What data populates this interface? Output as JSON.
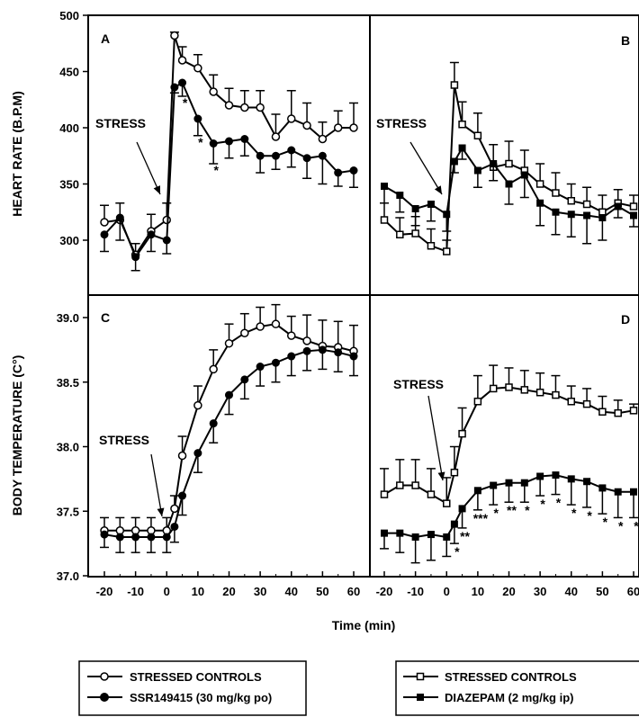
{
  "figure": {
    "x_axis_label": "Time (min)",
    "x_ticks": [
      -20,
      -10,
      0,
      10,
      20,
      30,
      40,
      50,
      60
    ],
    "stress_label": "STRESS"
  },
  "legends": [
    {
      "id": "left",
      "entries": [
        {
          "label": "STRESSED CONTROLS",
          "marker": "open-circle"
        },
        {
          "label": "SSR149415 (30 mg/kg po)",
          "marker": "filled-circle"
        }
      ]
    },
    {
      "id": "right",
      "entries": [
        {
          "label": "STRESSED CONTROLS",
          "marker": "open-square"
        },
        {
          "label": "DIAZEPAM (2 mg/kg ip)",
          "marker": "filled-square"
        }
      ]
    }
  ],
  "chart_data": [
    {
      "panel": "A",
      "type": "line",
      "ylabel": "HEART RATE (B.P.M)",
      "xlabel": "Time (min)",
      "ylim": [
        300,
        500
      ],
      "yticks": [
        300,
        350,
        400,
        450,
        500
      ],
      "xlim": [
        -25,
        62
      ],
      "x": [
        -20,
        -15,
        -10,
        -5,
        0,
        2.5,
        5,
        10,
        15,
        20,
        25,
        30,
        35,
        40,
        45,
        50,
        55,
        60
      ],
      "annotations": [
        {
          "text": "STRESS",
          "at_x": 0
        }
      ],
      "significance": [
        {
          "x": 5,
          "text": "*"
        },
        {
          "x": 10,
          "text": "*"
        },
        {
          "x": 15,
          "text": "*"
        }
      ],
      "series": [
        {
          "name": "STRESSED CONTROLS",
          "marker": "open-circle",
          "values": [
            316,
            318,
            287,
            308,
            318,
            482,
            460,
            453,
            432,
            420,
            418,
            418,
            392,
            408,
            402,
            390,
            400,
            400
          ],
          "errors": [
            15,
            15,
            10,
            15,
            15,
            3,
            12,
            12,
            15,
            15,
            15,
            15,
            20,
            25,
            20,
            15,
            15,
            22
          ]
        },
        {
          "name": "SSR149415 (30 mg/kg po)",
          "marker": "filled-circle",
          "values": [
            305,
            320,
            285,
            305,
            300,
            436,
            440,
            408,
            386,
            388,
            390,
            375,
            375,
            380,
            373,
            375,
            360,
            362
          ],
          "errors": [
            15,
            20,
            12,
            15,
            12,
            5,
            12,
            15,
            18,
            15,
            15,
            15,
            12,
            15,
            18,
            25,
            12,
            15
          ]
        }
      ]
    },
    {
      "panel": "B",
      "type": "line",
      "ylim": [
        300,
        500
      ],
      "xlim": [
        -25,
        62
      ],
      "x": [
        -20,
        -15,
        -10,
        -5,
        0,
        2.5,
        5,
        10,
        15,
        20,
        25,
        30,
        35,
        40,
        45,
        50,
        55,
        60
      ],
      "annotations": [
        {
          "text": "STRESS",
          "at_x": 0
        }
      ],
      "series": [
        {
          "name": "STRESSED CONTROLS",
          "marker": "open-square",
          "values": [
            318,
            305,
            306,
            295,
            290,
            438,
            403,
            393,
            365,
            368,
            362,
            350,
            342,
            335,
            332,
            325,
            333,
            330
          ],
          "errors": [
            15,
            15,
            15,
            15,
            10,
            20,
            20,
            20,
            20,
            20,
            18,
            18,
            18,
            15,
            15,
            15,
            12,
            10
          ]
        },
        {
          "name": "DIAZEPAM (2 mg/kg ip)",
          "marker": "filled-square",
          "values": [
            348,
            340,
            328,
            332,
            323,
            370,
            382,
            362,
            368,
            350,
            358,
            333,
            325,
            323,
            322,
            320,
            330,
            322
          ],
          "errors": [
            15,
            15,
            15,
            15,
            15,
            10,
            10,
            15,
            15,
            18,
            20,
            20,
            20,
            20,
            25,
            20,
            10,
            10
          ]
        }
      ]
    },
    {
      "panel": "C",
      "type": "line",
      "ylabel": "BODY TEMPERATURE (C°)",
      "xlabel": "Time (min)",
      "ylim": [
        37.0,
        39.25
      ],
      "yticks": [
        37.0,
        37.5,
        38.0,
        38.5,
        39.0
      ],
      "xlim": [
        -25,
        62
      ],
      "x": [
        -20,
        -15,
        -10,
        -5,
        0,
        2.5,
        5,
        10,
        15,
        20,
        25,
        30,
        35,
        40,
        45,
        50,
        55,
        60
      ],
      "annotations": [
        {
          "text": "STRESS",
          "at_x": 0
        }
      ],
      "series": [
        {
          "name": "STRESSED CONTROLS",
          "marker": "open-circle",
          "values": [
            37.35,
            37.35,
            37.35,
            37.35,
            37.35,
            37.52,
            37.93,
            38.32,
            38.6,
            38.8,
            38.88,
            38.93,
            38.95,
            38.86,
            38.82,
            38.78,
            38.77,
            38.74
          ],
          "errors": [
            0.1,
            0.1,
            0.1,
            0.1,
            0.1,
            0.1,
            0.15,
            0.15,
            0.15,
            0.15,
            0.15,
            0.15,
            0.15,
            0.15,
            0.2,
            0.2,
            0.2,
            0.2
          ]
        },
        {
          "name": "SSR149415 (30 mg/kg po)",
          "marker": "filled-circle",
          "values": [
            37.32,
            37.3,
            37.3,
            37.3,
            37.3,
            37.38,
            37.62,
            37.95,
            38.18,
            38.4,
            38.52,
            38.62,
            38.65,
            38.7,
            38.74,
            38.75,
            38.73,
            38.7
          ],
          "errors": [
            0.1,
            0.12,
            0.12,
            0.12,
            0.12,
            0.12,
            0.15,
            0.15,
            0.15,
            0.15,
            0.15,
            0.15,
            0.15,
            0.15,
            0.15,
            0.15,
            0.15,
            0.15
          ]
        }
      ]
    },
    {
      "panel": "D",
      "type": "line",
      "ylim": [
        37.0,
        39.25
      ],
      "xlim": [
        -25,
        62
      ],
      "x": [
        -20,
        -15,
        -10,
        -5,
        0,
        2.5,
        5,
        10,
        15,
        20,
        25,
        30,
        35,
        40,
        45,
        50,
        55,
        60
      ],
      "annotations": [
        {
          "text": "STRESS",
          "at_x": 0
        }
      ],
      "significance": [
        {
          "x": 2.5,
          "text": "*"
        },
        {
          "x": 5,
          "text": "**"
        },
        {
          "x": 10,
          "text": "***"
        },
        {
          "x": 15,
          "text": "*"
        },
        {
          "x": 20,
          "text": "**"
        },
        {
          "x": 25,
          "text": "*"
        },
        {
          "x": 30,
          "text": "*"
        },
        {
          "x": 35,
          "text": "*"
        },
        {
          "x": 40,
          "text": "*"
        },
        {
          "x": 45,
          "text": "*"
        },
        {
          "x": 50,
          "text": "*"
        },
        {
          "x": 55,
          "text": "*"
        },
        {
          "x": 60,
          "text": "*"
        }
      ],
      "series": [
        {
          "name": "STRESSED CONTROLS",
          "marker": "open-square",
          "values": [
            37.63,
            37.7,
            37.7,
            37.63,
            37.56,
            37.8,
            38.1,
            38.35,
            38.45,
            38.46,
            38.44,
            38.42,
            38.4,
            38.35,
            38.33,
            38.27,
            38.26,
            38.28
          ],
          "errors": [
            0.2,
            0.2,
            0.2,
            0.2,
            0.2,
            0.2,
            0.2,
            0.2,
            0.18,
            0.15,
            0.15,
            0.15,
            0.15,
            0.12,
            0.12,
            0.12,
            0.1,
            0.05
          ]
        },
        {
          "name": "DIAZEPAM (2 mg/kg ip)",
          "marker": "filled-square",
          "values": [
            37.33,
            37.33,
            37.3,
            37.32,
            37.3,
            37.4,
            37.52,
            37.66,
            37.7,
            37.72,
            37.72,
            37.77,
            37.78,
            37.75,
            37.73,
            37.68,
            37.65,
            37.65
          ],
          "errors": [
            0.12,
            0.15,
            0.2,
            0.2,
            0.15,
            0.15,
            0.15,
            0.15,
            0.15,
            0.15,
            0.15,
            0.15,
            0.15,
            0.2,
            0.2,
            0.2,
            0.2,
            0.2
          ]
        }
      ]
    }
  ]
}
